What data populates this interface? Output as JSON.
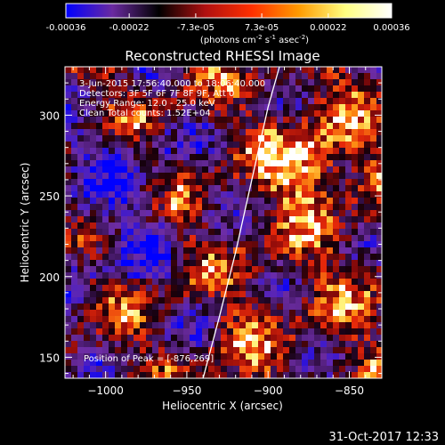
{
  "chart_data": {
    "type": "heatmap",
    "title": "Reconstructed RHESSI Image",
    "colorbar": {
      "ticks": [
        "-0.00036",
        "-0.00022",
        "-7.3e-05",
        "7.3e-05",
        "0.00022",
        "0.00036"
      ],
      "tick_values": [
        -0.00036,
        -0.00022,
        -7.3e-05,
        7.3e-05,
        0.00022,
        0.00036
      ],
      "range": [
        -0.00036,
        0.00036
      ],
      "unit_main": "(photons cm",
      "unit_sup1": "-2",
      "unit_mid": " s",
      "unit_sup2": "-1",
      "unit_end": " asec",
      "unit_sup3": "-2",
      "unit_close": ")",
      "colormap": [
        "#0000ff",
        "#6a2aa0",
        "#000000",
        "#b01010",
        "#ff3000",
        "#ff9a00",
        "#ffff80",
        "#ffffff"
      ]
    },
    "xlabel": "Heliocentric X (arcsec)",
    "ylabel": "Heliocentric Y (arcsec)",
    "xlim": [
      -1025,
      -830
    ],
    "ylim": [
      137,
      330
    ],
    "xticks": [
      -1000,
      -950,
      -900,
      -850
    ],
    "xtick_labels": [
      "−1000",
      "−950",
      "−900",
      "−850"
    ],
    "yticks": [
      150,
      200,
      250,
      300
    ],
    "ytick_labels": [
      "150",
      "200",
      "250",
      "300"
    ],
    "annotations": [
      "3-Jun-2015 17:56:40.000 to 18:06:40.000",
      "Detectors: 3F 5F 6F 7F 8F 9F, Att 0",
      "Energy Range: 12.0 - 25.0 keV",
      "Clean     Total counts: 1.52E+04"
    ],
    "peak_label": "Position of Peak = [-876,269]",
    "peak": [
      -876,
      269
    ],
    "limb_curve": {
      "x": [
        -940,
        -930,
        -920,
        -910,
        -900,
        -893
      ],
      "y": [
        137,
        175,
        215,
        260,
        305,
        330
      ]
    },
    "grid": false
  },
  "footer": {
    "timestamp": "31-Oct-2017 12:33"
  }
}
